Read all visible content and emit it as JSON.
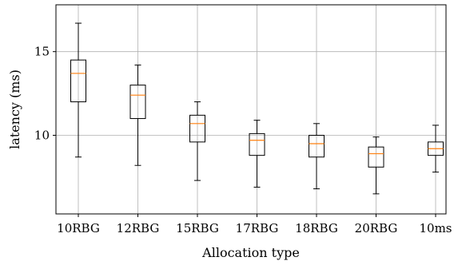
{
  "chart_data": {
    "type": "box",
    "xlabel": "Allocation type",
    "ylabel": "latency (ms)",
    "ylim": [
      5.3,
      17.8
    ],
    "yticks": [
      10,
      15
    ],
    "grid": true,
    "colors": {
      "box": "#000000",
      "median": "#ff7f0e",
      "grid": "#b0b0b0"
    },
    "categories": [
      "10RBG",
      "12RBG",
      "15RBG",
      "17RBG",
      "18RBG",
      "20RBG",
      "10ms"
    ],
    "boxes": [
      {
        "whislo": 8.7,
        "q1": 12.0,
        "med": 13.7,
        "q3": 14.5,
        "whishi": 16.7
      },
      {
        "whislo": 8.2,
        "q1": 11.0,
        "med": 12.4,
        "q3": 13.0,
        "whishi": 14.2
      },
      {
        "whislo": 7.3,
        "q1": 9.6,
        "med": 10.7,
        "q3": 11.2,
        "whishi": 12.0
      },
      {
        "whislo": 6.9,
        "q1": 8.8,
        "med": 9.7,
        "q3": 10.1,
        "whishi": 10.9
      },
      {
        "whislo": 6.8,
        "q1": 8.7,
        "med": 9.5,
        "q3": 10.0,
        "whishi": 10.7
      },
      {
        "whislo": 6.5,
        "q1": 8.1,
        "med": 8.9,
        "q3": 9.3,
        "whishi": 9.9
      },
      {
        "whislo": 7.8,
        "q1": 8.8,
        "med": 9.2,
        "q3": 9.6,
        "whishi": 10.6
      }
    ]
  }
}
